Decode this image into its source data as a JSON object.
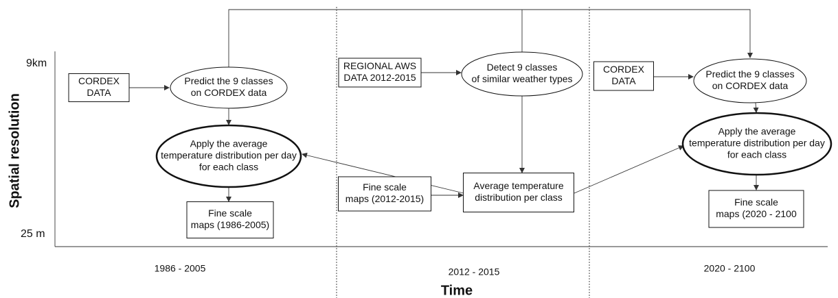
{
  "axes": {
    "y_label": "Spatial resolution",
    "y_top": "9km",
    "y_bottom": "25 m",
    "x_label": "Time"
  },
  "periods": [
    "1986 - 2005",
    "2012 - 2015",
    "2020 - 2100"
  ],
  "nodes": [
    {
      "lines": [
        "CORDEX",
        "DATA"
      ]
    },
    {
      "lines": [
        "Predict the 9 classes",
        "on CORDEX data"
      ]
    },
    {
      "lines": [
        "Apply the average",
        "temperature distribution per day",
        "for each class"
      ]
    },
    {
      "lines": [
        "Fine scale",
        "maps (1986-2005)"
      ]
    },
    {
      "lines": [
        "REGIONAL AWS",
        "DATA 2012-2015"
      ]
    },
    {
      "lines": [
        "Detect 9 classes",
        "of similar weather types"
      ]
    },
    {
      "lines": [
        "Fine scale",
        "maps (2012-2015)"
      ]
    },
    {
      "lines": [
        "Average temperature",
        "distribution per class"
      ]
    },
    {
      "lines": [
        "CORDEX",
        "DATA"
      ]
    },
    {
      "lines": [
        "Predict the 9 classes",
        "on CORDEX data"
      ]
    },
    {
      "lines": [
        "Apply the average",
        "temperature distribution per day",
        "for each class"
      ]
    },
    {
      "lines": [
        "Fine scale",
        "maps (2020 - 2100"
      ]
    }
  ]
}
